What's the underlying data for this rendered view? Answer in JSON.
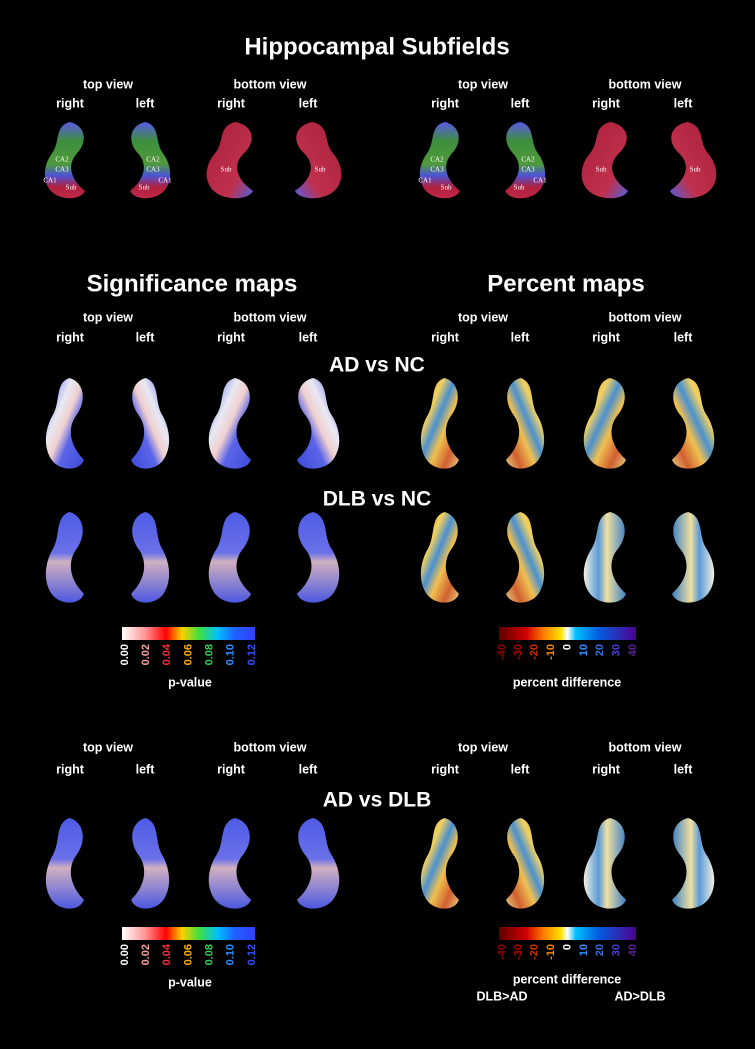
{
  "title": "Hippocampal Subfields",
  "views": {
    "top": "top view",
    "bottom": "bottom view",
    "right": "right",
    "left": "left"
  },
  "region_labels": [
    "CA1",
    "CA2",
    "CA3",
    "Sub"
  ],
  "sections": {
    "significance": "Significance maps",
    "percent": "Percent maps"
  },
  "comparisons": [
    "AD vs NC",
    "DLB vs NC",
    "AD vs DLB"
  ],
  "pvalue_bar": {
    "ticks": [
      "0.00",
      "0.02",
      "0.04",
      "0.06",
      "0.08",
      "0.10",
      "0.12"
    ],
    "label": "p-value"
  },
  "percent_bar": {
    "ticks": [
      "-40",
      "-30",
      "-20",
      "-10",
      "0",
      "10",
      "20",
      "30",
      "40"
    ],
    "label": "percent difference",
    "left_note": "DLB>AD",
    "right_note": "AD>DLB"
  }
}
